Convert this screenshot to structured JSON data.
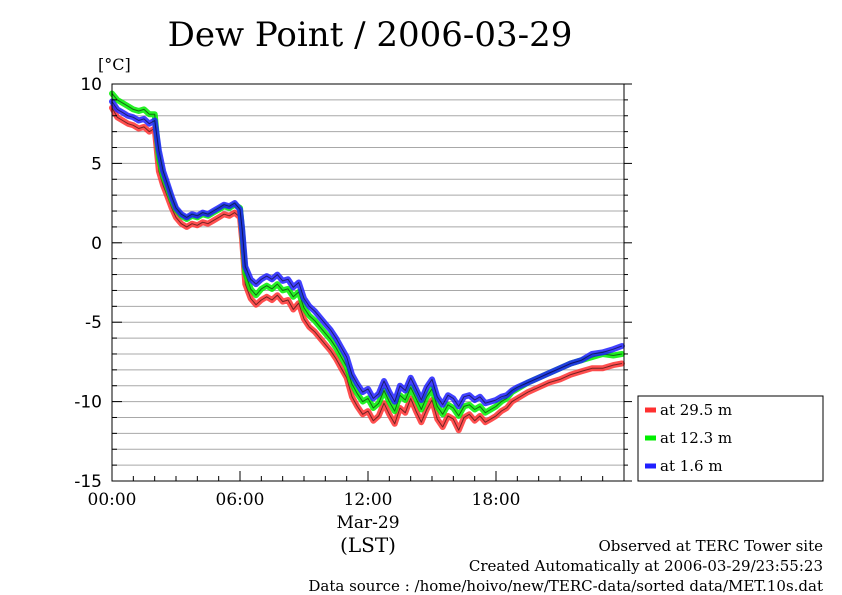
{
  "chart_data": {
    "type": "line",
    "title": "Dew Point / 2006-03-29",
    "ylabel": "[°C]",
    "xlabel": "(LST)",
    "x_date_label": "Mar-29",
    "xlim_hours": [
      0,
      23.92
    ],
    "ylim": [
      -15,
      10
    ],
    "y_ticks": [
      "10",
      "5",
      "0",
      "-5",
      "-10",
      "-15"
    ],
    "y_tick_values": [
      10,
      5,
      0,
      -5,
      -10,
      -15
    ],
    "x_ticks": [
      "00:00",
      "06:00",
      "12:00",
      "18:00"
    ],
    "x_tick_values": [
      0,
      6,
      12,
      18
    ],
    "grid": true,
    "legend_position": "right",
    "series": [
      {
        "name": "at 29.5 m",
        "color": "#ff3030",
        "x": [
          0,
          0.25,
          0.5,
          0.75,
          1,
          1.25,
          1.5,
          1.75,
          2,
          2.2,
          2.4,
          2.6,
          2.8,
          3,
          3.25,
          3.5,
          3.75,
          4,
          4.25,
          4.5,
          4.75,
          5,
          5.25,
          5.5,
          5.75,
          6,
          6.1,
          6.25,
          6.5,
          6.75,
          7,
          7.25,
          7.5,
          7.75,
          8,
          8.25,
          8.5,
          8.75,
          9,
          9.25,
          9.5,
          9.75,
          10,
          10.25,
          10.5,
          10.75,
          11,
          11.25,
          11.5,
          11.75,
          12,
          12.25,
          12.5,
          12.75,
          13,
          13.25,
          13.5,
          13.75,
          14,
          14.25,
          14.5,
          14.75,
          15,
          15.25,
          15.5,
          15.75,
          16,
          16.25,
          16.5,
          16.75,
          17,
          17.25,
          17.5,
          17.75,
          18,
          18.25,
          18.5,
          18.75,
          19,
          19.5,
          20,
          20.5,
          21,
          21.5,
          22,
          22.5,
          23,
          23.5,
          23.9
        ],
        "y": [
          8.5,
          7.9,
          7.7,
          7.5,
          7.4,
          7.2,
          7.3,
          7.0,
          7.2,
          4.5,
          3.6,
          2.9,
          2.2,
          1.6,
          1.2,
          1.0,
          1.2,
          1.1,
          1.3,
          1.2,
          1.4,
          1.6,
          1.8,
          1.7,
          1.9,
          1.6,
          0.2,
          -2.6,
          -3.5,
          -3.9,
          -3.6,
          -3.4,
          -3.6,
          -3.3,
          -3.7,
          -3.6,
          -4.2,
          -3.8,
          -4.8,
          -5.3,
          -5.6,
          -6.0,
          -6.4,
          -6.8,
          -7.3,
          -7.9,
          -8.5,
          -9.7,
          -10.3,
          -10.8,
          -10.6,
          -11.2,
          -10.9,
          -10.1,
          -10.8,
          -11.4,
          -10.4,
          -10.7,
          -9.8,
          -10.6,
          -11.3,
          -10.5,
          -9.9,
          -11.1,
          -11.6,
          -10.9,
          -11.1,
          -11.8,
          -11.0,
          -10.8,
          -11.2,
          -10.9,
          -11.3,
          -11.1,
          -10.9,
          -10.6,
          -10.4,
          -10.0,
          -9.8,
          -9.4,
          -9.1,
          -8.8,
          -8.6,
          -8.3,
          -8.1,
          -7.9,
          -7.9,
          -7.7,
          -7.6
        ]
      },
      {
        "name": "at 12.3 m",
        "color": "#00ee00",
        "x": [
          0,
          0.25,
          0.5,
          0.75,
          1,
          1.25,
          1.5,
          1.75,
          2,
          2.2,
          2.4,
          2.6,
          2.8,
          3,
          3.25,
          3.5,
          3.75,
          4,
          4.25,
          4.5,
          4.75,
          5,
          5.25,
          5.5,
          5.75,
          6,
          6.1,
          6.25,
          6.5,
          6.75,
          7,
          7.25,
          7.5,
          7.75,
          8,
          8.25,
          8.5,
          8.75,
          9,
          9.25,
          9.5,
          9.75,
          10,
          10.25,
          10.5,
          10.75,
          11,
          11.25,
          11.5,
          11.75,
          12,
          12.25,
          12.5,
          12.75,
          13,
          13.25,
          13.5,
          13.75,
          14,
          14.25,
          14.5,
          14.75,
          15,
          15.25,
          15.5,
          15.75,
          16,
          16.25,
          16.5,
          16.75,
          17,
          17.25,
          17.5,
          17.75,
          18,
          18.25,
          18.5,
          18.75,
          19,
          19.5,
          20,
          20.5,
          21,
          21.5,
          22,
          22.5,
          23,
          23.5,
          23.9
        ],
        "y": [
          9.4,
          9.0,
          8.8,
          8.6,
          8.4,
          8.3,
          8.4,
          8.1,
          8.1,
          5.3,
          4.2,
          3.5,
          2.7,
          2.1,
          1.7,
          1.5,
          1.7,
          1.6,
          1.8,
          1.7,
          1.9,
          2.1,
          2.3,
          2.2,
          2.4,
          2.2,
          0.8,
          -1.9,
          -2.9,
          -3.3,
          -2.9,
          -2.7,
          -2.9,
          -2.6,
          -3.0,
          -2.9,
          -3.4,
          -3.1,
          -4.1,
          -4.6,
          -4.9,
          -5.3,
          -5.7,
          -6.1,
          -6.6,
          -7.2,
          -7.8,
          -8.9,
          -9.5,
          -10.0,
          -9.8,
          -10.4,
          -10.1,
          -9.3,
          -10.0,
          -10.6,
          -9.6,
          -9.9,
          -9.1,
          -9.8,
          -10.5,
          -9.7,
          -9.2,
          -10.3,
          -10.8,
          -10.2,
          -10.4,
          -10.9,
          -10.3,
          -10.2,
          -10.5,
          -10.3,
          -10.7,
          -10.5,
          -10.3,
          -10.0,
          -9.8,
          -9.4,
          -9.2,
          -8.8,
          -8.5,
          -8.2,
          -7.9,
          -7.6,
          -7.4,
          -7.2,
          -7.0,
          -7.1,
          -7.0
        ]
      },
      {
        "name": "at 1.6 m",
        "color": "#2020ff",
        "x": [
          0,
          0.25,
          0.5,
          0.75,
          1,
          1.25,
          1.5,
          1.75,
          2,
          2.2,
          2.4,
          2.6,
          2.8,
          3,
          3.25,
          3.5,
          3.75,
          4,
          4.25,
          4.5,
          4.75,
          5,
          5.25,
          5.5,
          5.75,
          6,
          6.1,
          6.25,
          6.5,
          6.75,
          7,
          7.25,
          7.5,
          7.75,
          8,
          8.25,
          8.5,
          8.75,
          9,
          9.25,
          9.5,
          9.75,
          10,
          10.25,
          10.5,
          10.75,
          11,
          11.25,
          11.5,
          11.75,
          12,
          12.25,
          12.5,
          12.75,
          13,
          13.25,
          13.5,
          13.75,
          14,
          14.25,
          14.5,
          14.75,
          15,
          15.25,
          15.5,
          15.75,
          16,
          16.25,
          16.5,
          16.75,
          17,
          17.25,
          17.5,
          17.75,
          18,
          18.25,
          18.5,
          18.75,
          19,
          19.5,
          20,
          20.5,
          21,
          21.5,
          22,
          22.5,
          23,
          23.5,
          23.9
        ],
        "y": [
          8.9,
          8.4,
          8.2,
          8.0,
          7.9,
          7.7,
          7.8,
          7.5,
          7.7,
          5.8,
          4.5,
          3.7,
          2.9,
          2.2,
          1.8,
          1.6,
          1.8,
          1.7,
          1.9,
          1.8,
          2.0,
          2.2,
          2.4,
          2.3,
          2.5,
          2.1,
          0.9,
          -1.5,
          -2.3,
          -2.6,
          -2.3,
          -2.1,
          -2.3,
          -2.0,
          -2.4,
          -2.3,
          -2.8,
          -2.5,
          -3.5,
          -4.0,
          -4.3,
          -4.7,
          -5.1,
          -5.5,
          -6.0,
          -6.6,
          -7.2,
          -8.3,
          -8.9,
          -9.4,
          -9.2,
          -9.8,
          -9.5,
          -8.7,
          -9.4,
          -10.0,
          -9.0,
          -9.3,
          -8.5,
          -9.2,
          -9.9,
          -9.1,
          -8.6,
          -9.7,
          -10.2,
          -9.6,
          -9.8,
          -10.3,
          -9.7,
          -9.6,
          -9.9,
          -9.7,
          -10.1,
          -10.0,
          -9.9,
          -9.7,
          -9.6,
          -9.3,
          -9.1,
          -8.8,
          -8.5,
          -8.2,
          -7.9,
          -7.6,
          -7.4,
          -7.0,
          -6.9,
          -6.7,
          -6.5
        ]
      }
    ]
  },
  "footer": {
    "site": "Observed at TERC Tower site",
    "created": "Created Automatically at 2006-03-29/23:55:23",
    "source": "Data source : /home/hoivo/new/TERC-data/sorted data/MET.10s.dat"
  }
}
